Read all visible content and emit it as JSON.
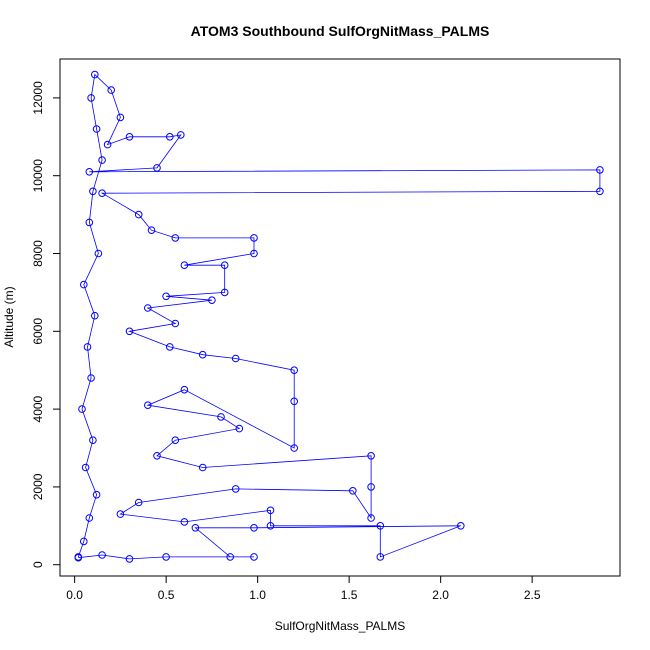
{
  "chart_data": {
    "type": "scatter",
    "title": "ATOM3 Southbound SulfOrgNitMass_PALMS",
    "xlabel": "SulfOrgNitMass_PALMS",
    "ylabel": "Altitude (m)",
    "xlim": [
      -0.08,
      2.98
    ],
    "ylim": [
      -290,
      13000
    ],
    "x_ticks": [
      0.0,
      0.5,
      1.0,
      1.5,
      2.0,
      2.5
    ],
    "x_tick_labels": [
      "0.0",
      "0.5",
      "1.0",
      "1.5",
      "2.0",
      "2.5"
    ],
    "y_ticks": [
      0,
      2000,
      4000,
      6000,
      8000,
      10000,
      12000
    ],
    "y_tick_labels": [
      "0",
      "2000",
      "4000",
      "6000",
      "8000",
      "10000",
      "12000"
    ],
    "grid": false,
    "legend": "none",
    "marker": "open-circle",
    "series_color": "#0000ff",
    "series": [
      {
        "values": [
          {
            "x": 0.02,
            "y": 200
          },
          {
            "x": 0.05,
            "y": 600
          },
          {
            "x": 0.08,
            "y": 1200
          },
          {
            "x": 0.12,
            "y": 1800
          },
          {
            "x": 0.06,
            "y": 2500
          },
          {
            "x": 0.1,
            "y": 3200
          },
          {
            "x": 0.04,
            "y": 4000
          },
          {
            "x": 0.09,
            "y": 4800
          },
          {
            "x": 0.07,
            "y": 5600
          },
          {
            "x": 0.11,
            "y": 6400
          },
          {
            "x": 0.05,
            "y": 7200
          },
          {
            "x": 0.13,
            "y": 8000
          },
          {
            "x": 0.08,
            "y": 8800
          },
          {
            "x": 0.1,
            "y": 9600
          },
          {
            "x": 0.15,
            "y": 10400
          },
          {
            "x": 0.12,
            "y": 11200
          },
          {
            "x": 0.09,
            "y": 12000
          },
          {
            "x": 0.11,
            "y": 12600
          },
          {
            "x": 0.2,
            "y": 12200
          },
          {
            "x": 0.25,
            "y": 11500
          },
          {
            "x": 0.18,
            "y": 10800
          },
          {
            "x": 0.3,
            "y": 11000
          },
          {
            "x": 0.52,
            "y": 11000
          },
          {
            "x": 0.58,
            "y": 11050
          },
          {
            "x": 0.45,
            "y": 10200
          },
          {
            "x": 0.08,
            "y": 10100
          },
          {
            "x": 2.87,
            "y": 10150
          },
          {
            "x": 2.87,
            "y": 9600
          },
          {
            "x": 0.15,
            "y": 9550
          },
          {
            "x": 0.35,
            "y": 9000
          },
          {
            "x": 0.42,
            "y": 8600
          },
          {
            "x": 0.55,
            "y": 8400
          },
          {
            "x": 0.98,
            "y": 8400
          },
          {
            "x": 0.98,
            "y": 8000
          },
          {
            "x": 0.6,
            "y": 7700
          },
          {
            "x": 0.82,
            "y": 7700
          },
          {
            "x": 0.82,
            "y": 7000
          },
          {
            "x": 0.5,
            "y": 6900
          },
          {
            "x": 0.75,
            "y": 6800
          },
          {
            "x": 0.4,
            "y": 6600
          },
          {
            "x": 0.55,
            "y": 6200
          },
          {
            "x": 0.3,
            "y": 6000
          },
          {
            "x": 0.52,
            "y": 5600
          },
          {
            "x": 0.7,
            "y": 5400
          },
          {
            "x": 0.88,
            "y": 5300
          },
          {
            "x": 1.2,
            "y": 5000
          },
          {
            "x": 1.2,
            "y": 4200
          },
          {
            "x": 1.2,
            "y": 3000
          },
          {
            "x": 0.6,
            "y": 4500
          },
          {
            "x": 0.4,
            "y": 4100
          },
          {
            "x": 0.8,
            "y": 3800
          },
          {
            "x": 0.9,
            "y": 3500
          },
          {
            "x": 0.55,
            "y": 3200
          },
          {
            "x": 0.45,
            "y": 2800
          },
          {
            "x": 0.7,
            "y": 2500
          },
          {
            "x": 1.62,
            "y": 2800
          },
          {
            "x": 1.62,
            "y": 2000
          },
          {
            "x": 1.62,
            "y": 1200
          },
          {
            "x": 1.52,
            "y": 1900
          },
          {
            "x": 0.88,
            "y": 1950
          },
          {
            "x": 0.35,
            "y": 1600
          },
          {
            "x": 0.25,
            "y": 1300
          },
          {
            "x": 0.6,
            "y": 1100
          },
          {
            "x": 1.07,
            "y": 1400
          },
          {
            "x": 1.07,
            "y": 1000
          },
          {
            "x": 1.67,
            "y": 1000
          },
          {
            "x": 1.67,
            "y": 200
          },
          {
            "x": 2.11,
            "y": 1000
          },
          {
            "x": 0.98,
            "y": 950
          },
          {
            "x": 0.66,
            "y": 950
          },
          {
            "x": 0.85,
            "y": 200
          },
          {
            "x": 0.98,
            "y": 200
          },
          {
            "x": 0.5,
            "y": 200
          },
          {
            "x": 0.3,
            "y": 150
          },
          {
            "x": 0.15,
            "y": 250
          },
          {
            "x": 0.02,
            "y": 180
          }
        ]
      }
    ]
  }
}
